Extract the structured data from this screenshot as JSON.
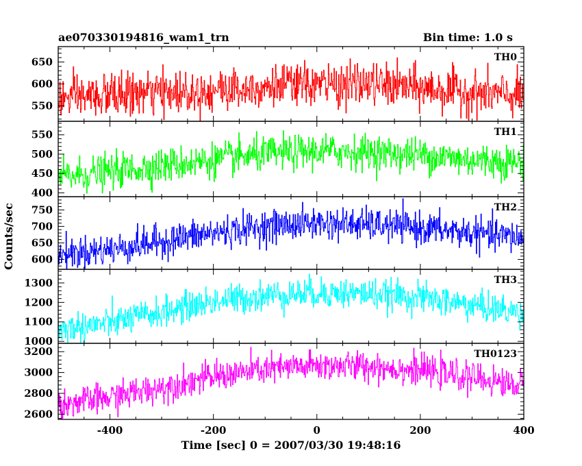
{
  "header": {
    "title": "ae070330194816_wam1_trn",
    "bin_time": "Bin time: 1.0 s"
  },
  "chart_data": {
    "type": "line",
    "ylabel": "Counts/sec",
    "xlabel": "Time [sec] 0 = 2007/03/30 19:48:16",
    "xlim": [
      -500,
      400
    ],
    "x_ticks": [
      -400,
      -200,
      0,
      200,
      400
    ],
    "data_x_range": [
      -500,
      399
    ],
    "bin_seconds": 1.0,
    "grid": false,
    "panels": [
      {
        "name": "TH0",
        "color": "#ff0000",
        "ylim": [
          515,
          685
        ],
        "y_ticks": [
          550,
          600,
          650
        ],
        "trend": [
          [
            -500,
            565
          ],
          [
            -400,
            575
          ],
          [
            -300,
            580
          ],
          [
            -200,
            585
          ],
          [
            -100,
            595
          ],
          [
            0,
            598
          ],
          [
            100,
            600
          ],
          [
            200,
            590
          ],
          [
            300,
            580
          ],
          [
            399,
            572
          ]
        ],
        "noise_sd": 24,
        "range_observed": [
          515,
          685
        ]
      },
      {
        "name": "TH1",
        "color": "#00ff00",
        "ylim": [
          390,
          585
        ],
        "y_ticks": [
          400,
          450,
          500,
          550
        ],
        "trend": [
          [
            -500,
            440
          ],
          [
            -400,
            455
          ],
          [
            -300,
            470
          ],
          [
            -200,
            485
          ],
          [
            -100,
            500
          ],
          [
            0,
            508
          ],
          [
            100,
            505
          ],
          [
            200,
            498
          ],
          [
            300,
            485
          ],
          [
            399,
            478
          ]
        ],
        "noise_sd": 22,
        "range_observed": [
          390,
          585
        ]
      },
      {
        "name": "TH2",
        "color": "#0000ff",
        "ylim": [
          570,
          790
        ],
        "y_ticks": [
          600,
          650,
          700,
          750
        ],
        "trend": [
          [
            -500,
            615
          ],
          [
            -400,
            630
          ],
          [
            -300,
            655
          ],
          [
            -200,
            680
          ],
          [
            -100,
            700
          ],
          [
            0,
            710
          ],
          [
            100,
            705
          ],
          [
            200,
            695
          ],
          [
            300,
            680
          ],
          [
            399,
            665
          ]
        ],
        "noise_sd": 24,
        "range_observed": [
          570,
          790
        ]
      },
      {
        "name": "TH3",
        "color": "#00ffff",
        "ylim": [
          990,
          1370
        ],
        "y_ticks": [
          1000,
          1100,
          1200,
          1300
        ],
        "trend": [
          [
            -500,
            1060
          ],
          [
            -400,
            1095
          ],
          [
            -300,
            1150
          ],
          [
            -200,
            1205
          ],
          [
            -100,
            1235
          ],
          [
            0,
            1250
          ],
          [
            100,
            1245
          ],
          [
            200,
            1225
          ],
          [
            300,
            1185
          ],
          [
            399,
            1145
          ]
        ],
        "noise_sd": 38,
        "range_observed": [
          990,
          1370
        ]
      },
      {
        "name": "TH0123",
        "color": "#ff00ff",
        "ylim": [
          2550,
          3280
        ],
        "y_ticks": [
          2600,
          2800,
          3000,
          3200
        ],
        "trend": [
          [
            -500,
            2690
          ],
          [
            -400,
            2760
          ],
          [
            -300,
            2860
          ],
          [
            -200,
            2960
          ],
          [
            -100,
            3030
          ],
          [
            0,
            3065
          ],
          [
            100,
            3060
          ],
          [
            200,
            3020
          ],
          [
            300,
            2950
          ],
          [
            399,
            2870
          ]
        ],
        "noise_sd": 70,
        "range_observed": [
          2550,
          3280
        ]
      }
    ]
  }
}
